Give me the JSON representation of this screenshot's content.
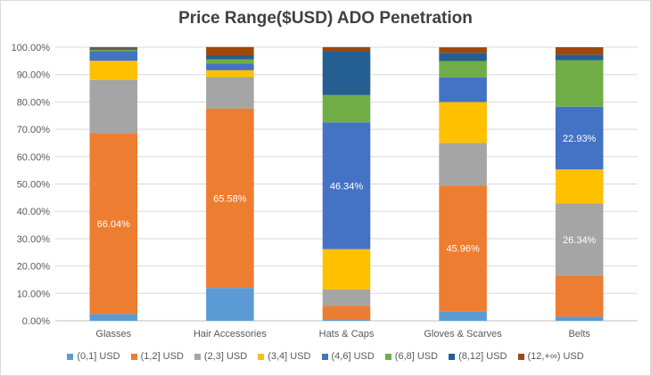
{
  "chart_data": {
    "type": "bar",
    "stacked": true,
    "title": "Price Range($USD) ADO Penetration",
    "xlabel": "",
    "ylabel": "",
    "ylim": [
      0,
      1
    ],
    "y_ticks": [
      "0.00%",
      "10.00%",
      "20.00%",
      "30.00%",
      "40.00%",
      "50.00%",
      "60.00%",
      "70.00%",
      "80.00%",
      "90.00%",
      "100.00%"
    ],
    "grid": true,
    "legend_position": "bottom",
    "categories": [
      "Glasses",
      "Hair Accessories",
      "Hats & Caps",
      "Gloves & Scarves",
      "Belts"
    ],
    "series": [
      {
        "name": "(0,1] USD",
        "color": "#5b9bd5",
        "values": [
          0.025,
          0.12,
          0.005,
          0.035,
          0.015
        ]
      },
      {
        "name": "(1,2] USD",
        "color": "#ed7d31",
        "values": [
          0.6604,
          0.6558,
          0.05,
          0.4596,
          0.15
        ]
      },
      {
        "name": "(2,3] USD",
        "color": "#a5a5a5",
        "values": [
          0.195,
          0.115,
          0.06,
          0.155,
          0.2634
        ]
      },
      {
        "name": "(3,4] USD",
        "color": "#ffc000",
        "values": [
          0.07,
          0.025,
          0.147,
          0.15,
          0.125
        ]
      },
      {
        "name": "(4,6] USD",
        "color": "#4472c4",
        "values": [
          0.035,
          0.025,
          0.4634,
          0.09,
          0.2293
        ]
      },
      {
        "name": "(6,8] USD",
        "color": "#70ad47",
        "values": [
          0.005,
          0.015,
          0.1,
          0.06,
          0.17
        ]
      },
      {
        "name": "(8,12] USD",
        "color": "#255e91",
        "values": [
          0.005,
          0.015,
          0.16,
          0.03,
          0.02
        ]
      },
      {
        "name": "(12,+∞) USD",
        "color": "#9e480e",
        "values": [
          0.005,
          0.03,
          0.015,
          0.02,
          0.0273
        ]
      }
    ],
    "data_labels": [
      {
        "category": "Glasses",
        "series": "(1,2] USD",
        "text": "66.04%"
      },
      {
        "category": "Hair Accessories",
        "series": "(1,2] USD",
        "text": "65.58%"
      },
      {
        "category": "Hats & Caps",
        "series": "(4,6] USD",
        "text": "46.34%"
      },
      {
        "category": "Gloves & Scarves",
        "series": "(1,2] USD",
        "text": "45.96%"
      },
      {
        "category": "Belts",
        "series": "(4,6] USD",
        "text": "22.93%"
      },
      {
        "category": "Belts",
        "series": "(2,3] USD",
        "text": "26.34%"
      }
    ]
  }
}
